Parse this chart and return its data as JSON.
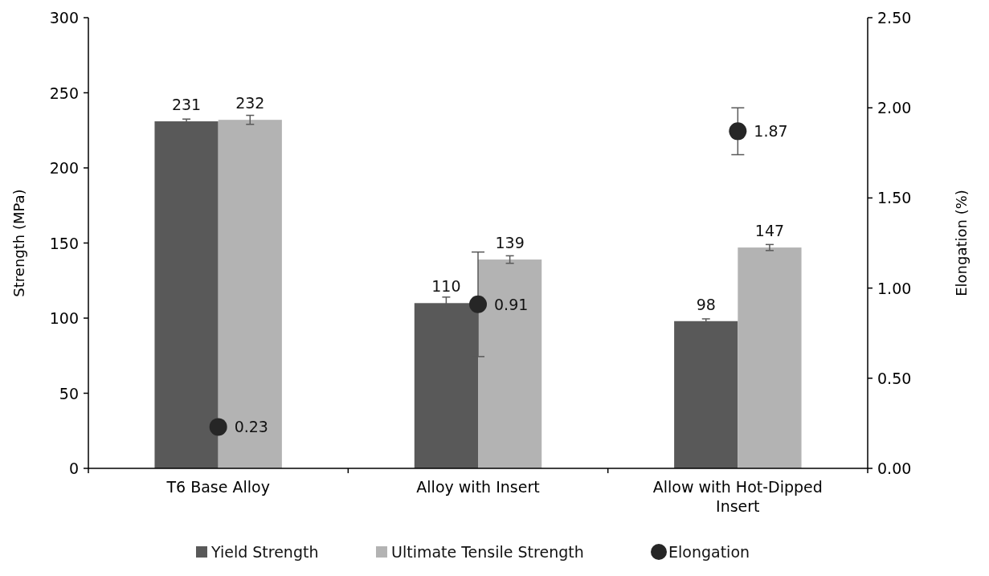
{
  "chart_data": {
    "type": "bar",
    "categories": [
      "T6 Base Alloy",
      "Alloy with Insert",
      "Allow with Hot-Dipped Insert"
    ],
    "ylabel": "Strength (MPa)",
    "y2label": "Elongation (%)",
    "ylim": [
      0,
      300
    ],
    "yticks": [
      0,
      50,
      100,
      150,
      200,
      250,
      300
    ],
    "y2lim": [
      0,
      2.5
    ],
    "y2ticks": [
      {
        "value": 0,
        "label": "0.00"
      },
      {
        "value": 0.5,
        "label": "0.50"
      },
      {
        "value": 1,
        "label": "1.00"
      },
      {
        "value": 1.5,
        "label": "1.50"
      },
      {
        "value": 2,
        "label": "2.00"
      },
      {
        "value": 2.5,
        "label": "2.50"
      }
    ],
    "data_labels": true,
    "grid": false,
    "legend": "bottom",
    "series": [
      {
        "name": "Yield Strength",
        "color": "#595959",
        "values": [
          231,
          110,
          98
        ],
        "errors": [
          1.5,
          4,
          1.5
        ]
      },
      {
        "name": "Ultimate Tensile Strength",
        "color": "#b3b3b3",
        "values": [
          232,
          139,
          147
        ],
        "errors": [
          3,
          2.5,
          2
        ]
      },
      {
        "name": "Elongation",
        "type": "scatter",
        "axis": "y2",
        "marker": "circle",
        "color": "#262626",
        "x": [
          "T6 Base Alloy",
          "Alloy with Insert",
          "Allow with Hot-Dipped Insert"
        ],
        "values": [
          0.23,
          0.91,
          1.87
        ],
        "errors": [
          null,
          0.29,
          0.13
        ]
      }
    ]
  }
}
